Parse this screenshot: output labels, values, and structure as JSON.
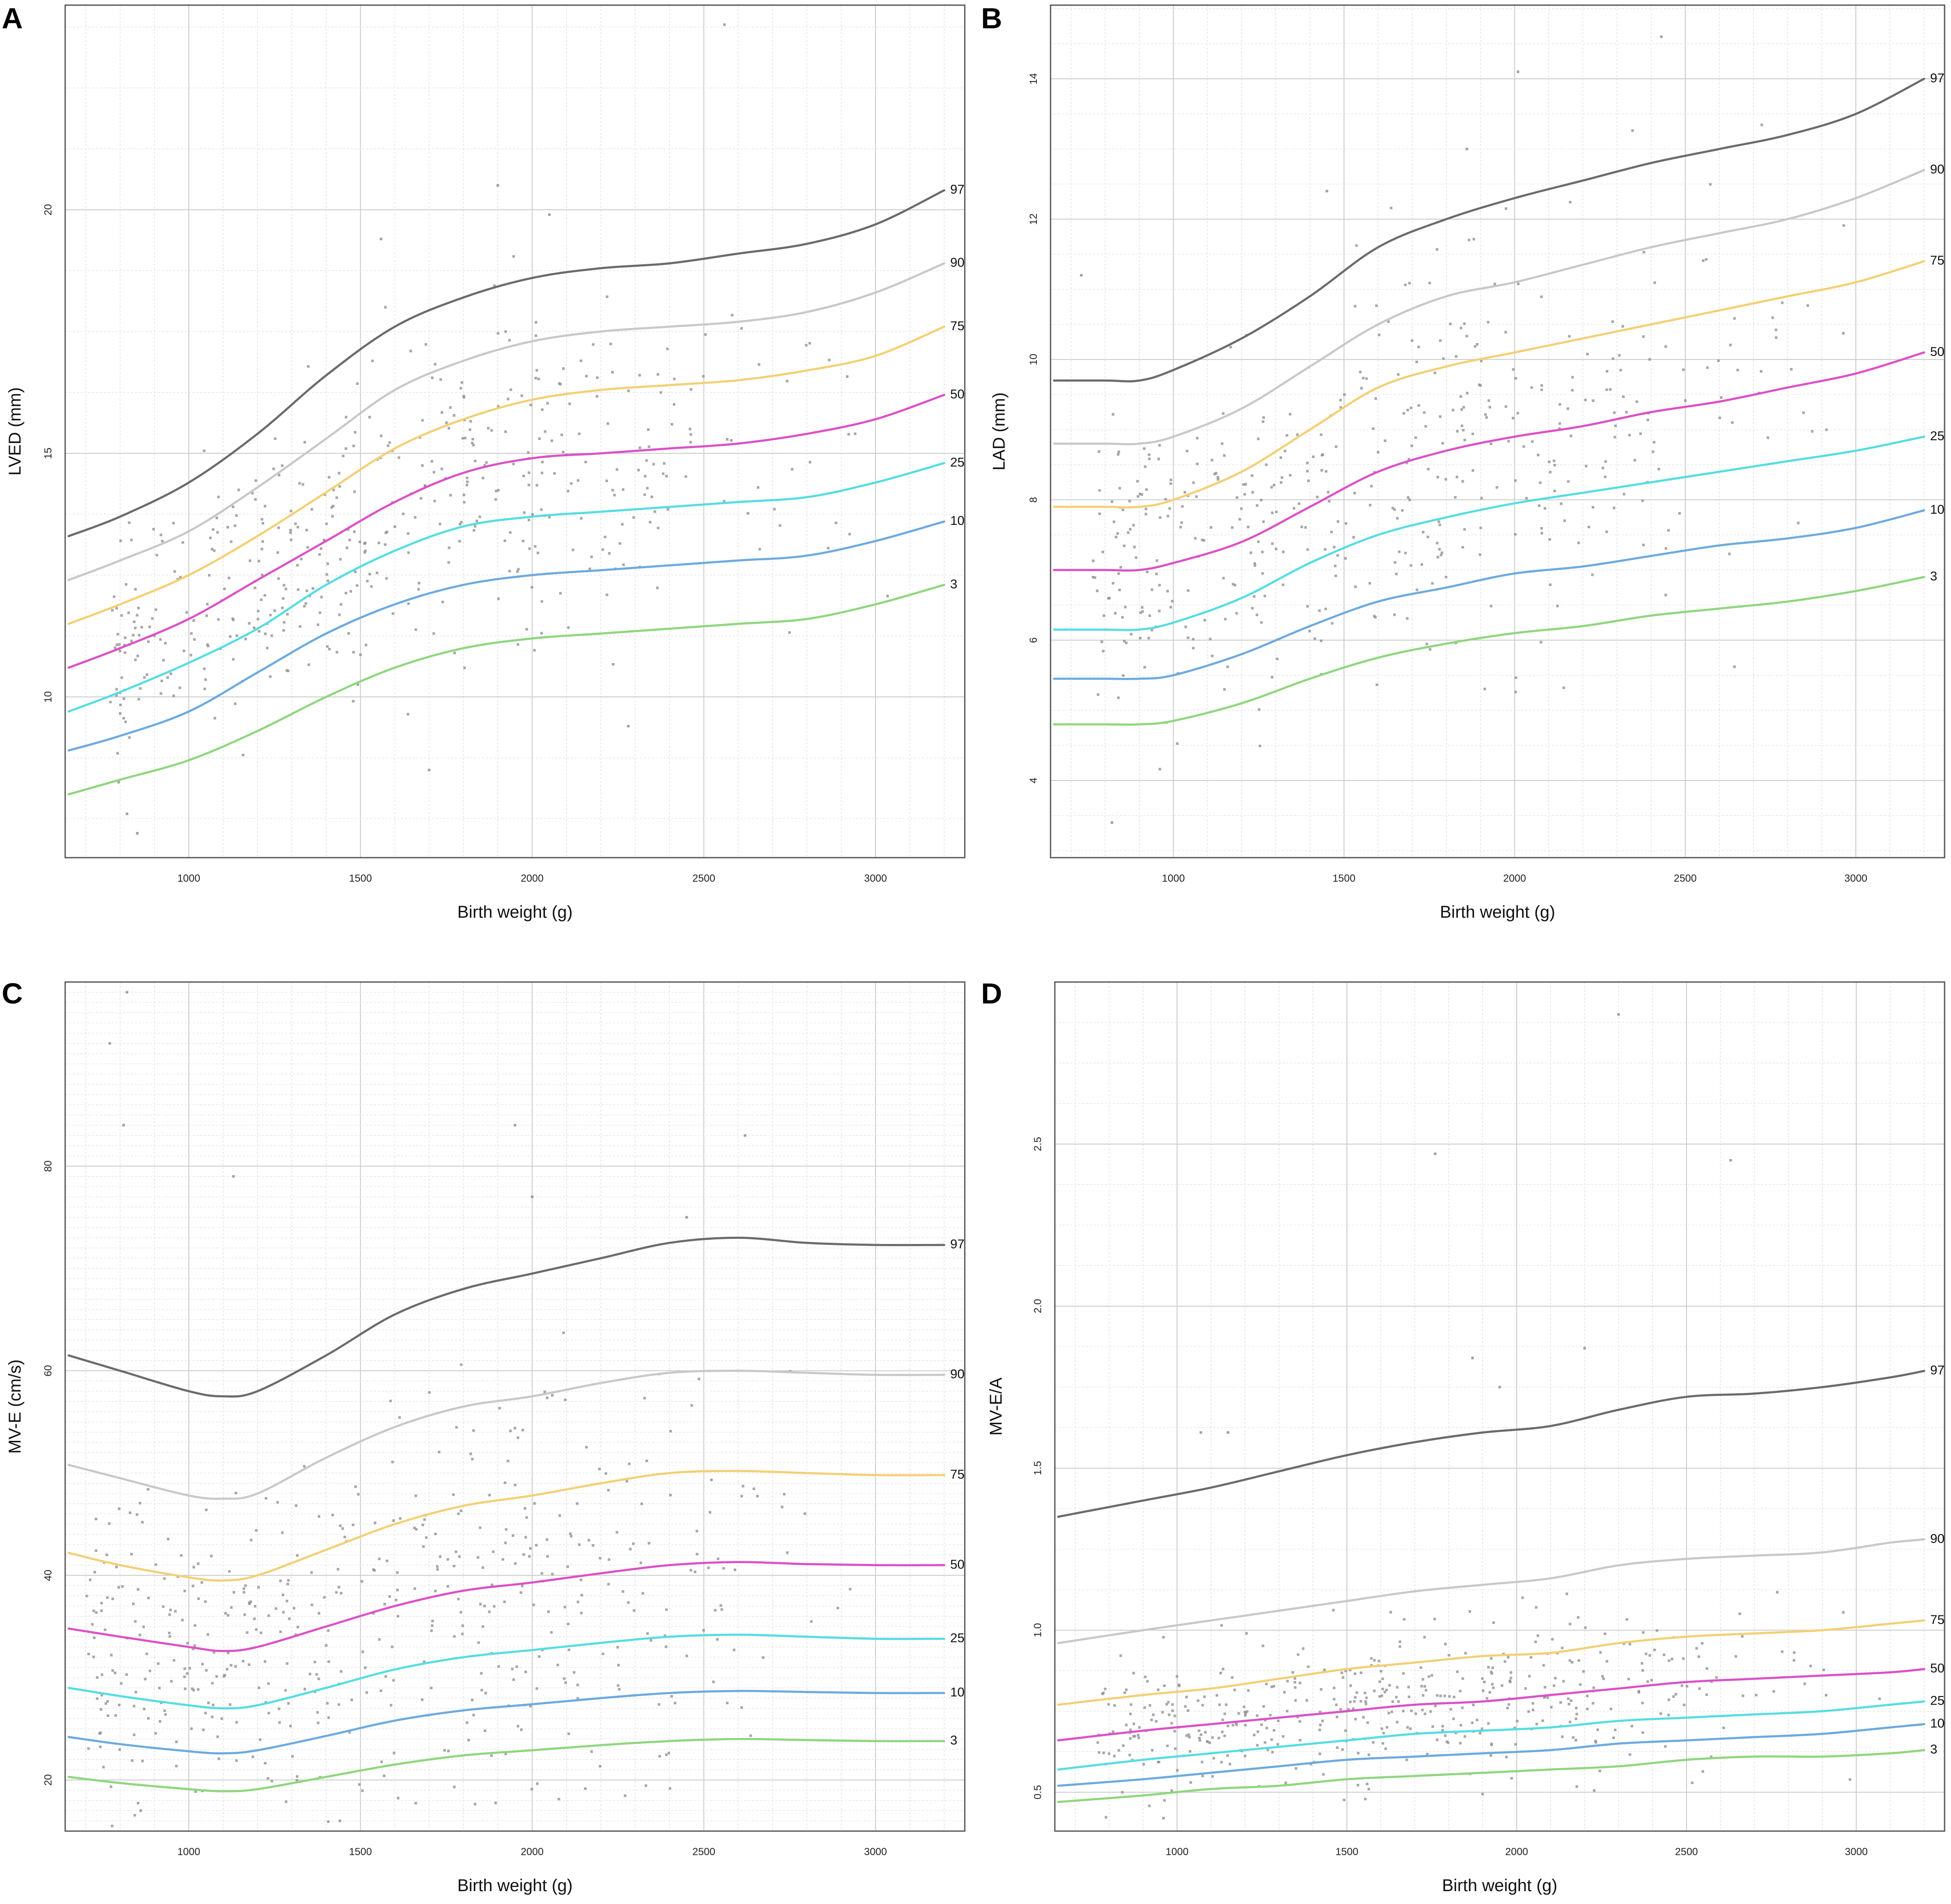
{
  "figure": {
    "panels": [
      "A",
      "B",
      "C",
      "D"
    ]
  },
  "chart_data": [
    {
      "panel": "A",
      "type": "line",
      "title": "",
      "xlabel": "Birth weight (g)",
      "ylabel": "LVED (mm)",
      "xlim": [
        640,
        3260
      ],
      "ylim": [
        6.7,
        24.2
      ],
      "xticks": [
        1000,
        1500,
        2000,
        2500,
        3000
      ],
      "yticks": [
        10,
        15,
        20
      ],
      "grid": "on",
      "x": [
        650,
        800,
        1000,
        1200,
        1400,
        1600,
        1800,
        2000,
        2200,
        2400,
        2600,
        2800,
        3000,
        3200
      ],
      "series": [
        {
          "name": "97",
          "color": "#6b6b6b",
          "values": [
            13.3,
            13.7,
            14.4,
            15.4,
            16.6,
            17.6,
            18.2,
            18.6,
            18.8,
            18.9,
            19.1,
            19.3,
            19.7,
            20.4
          ]
        },
        {
          "name": "90",
          "color": "#c8c8c8",
          "values": [
            12.4,
            12.8,
            13.4,
            14.3,
            15.3,
            16.3,
            16.9,
            17.3,
            17.5,
            17.6,
            17.7,
            17.9,
            18.3,
            18.9
          ]
        },
        {
          "name": "75",
          "color": "#f4cf74",
          "values": [
            11.5,
            11.9,
            12.5,
            13.3,
            14.2,
            15.1,
            15.7,
            16.1,
            16.3,
            16.4,
            16.5,
            16.7,
            17.0,
            17.6
          ]
        },
        {
          "name": "50",
          "color": "#dc50c8",
          "values": [
            10.6,
            11.0,
            11.6,
            12.4,
            13.2,
            14.0,
            14.6,
            14.9,
            15.0,
            15.1,
            15.2,
            15.4,
            15.7,
            16.2
          ]
        },
        {
          "name": "25",
          "color": "#55dde3",
          "values": [
            9.7,
            10.1,
            10.7,
            11.4,
            12.3,
            13.0,
            13.5,
            13.7,
            13.8,
            13.9,
            14.0,
            14.1,
            14.4,
            14.8
          ]
        },
        {
          "name": "10",
          "color": "#6daadf",
          "values": [
            8.9,
            9.2,
            9.7,
            10.5,
            11.3,
            11.9,
            12.3,
            12.5,
            12.6,
            12.7,
            12.8,
            12.9,
            13.2,
            13.6
          ]
        },
        {
          "name": "3",
          "color": "#8fd67e",
          "values": [
            8.0,
            8.3,
            8.7,
            9.3,
            10.0,
            10.6,
            11.0,
            11.2,
            11.3,
            11.4,
            11.5,
            11.6,
            11.9,
            12.3
          ]
        }
      ],
      "scatter": {
        "seed": 11,
        "n": 480,
        "xrange": [
          760,
          3050
        ],
        "center_series": "50",
        "low_series": "3",
        "high_series": "97",
        "spread": 0.55,
        "outliers": [
          [
            2560,
            23.8
          ],
          [
            1900,
            20.5
          ],
          [
            2050,
            19.9
          ],
          [
            1560,
            19.4
          ],
          [
            850,
            7.2
          ],
          [
            820,
            7.6
          ],
          [
            1700,
            8.5
          ],
          [
            2280,
            9.4
          ]
        ]
      }
    },
    {
      "panel": "B",
      "type": "line",
      "title": "",
      "xlabel": "Birth weight (g)",
      "ylabel": "LAD (mm)",
      "xlim": [
        640,
        3260
      ],
      "ylim": [
        2.9,
        15.05
      ],
      "xticks": [
        1000,
        1500,
        2000,
        2500,
        3000
      ],
      "yticks": [
        4,
        6,
        8,
        10,
        12,
        14
      ],
      "grid": "on",
      "x": [
        650,
        800,
        900,
        1000,
        1200,
        1400,
        1600,
        1800,
        2000,
        2200,
        2400,
        2600,
        2800,
        3000,
        3200
      ],
      "series": [
        {
          "name": "97",
          "color": "#6b6b6b",
          "values": [
            9.7,
            9.7,
            9.7,
            9.85,
            10.3,
            10.9,
            11.6,
            12.0,
            12.3,
            12.55,
            12.8,
            13.0,
            13.2,
            13.5,
            14.0
          ]
        },
        {
          "name": "90",
          "color": "#c8c8c8",
          "values": [
            8.8,
            8.8,
            8.8,
            8.9,
            9.3,
            9.9,
            10.5,
            10.9,
            11.1,
            11.35,
            11.6,
            11.8,
            12.0,
            12.3,
            12.7
          ]
        },
        {
          "name": "75",
          "color": "#f4cf74",
          "values": [
            7.9,
            7.9,
            7.9,
            8.0,
            8.4,
            9.0,
            9.6,
            9.9,
            10.1,
            10.3,
            10.5,
            10.7,
            10.9,
            11.1,
            11.4
          ]
        },
        {
          "name": "50",
          "color": "#dc50c8",
          "values": [
            7.0,
            7.0,
            7.0,
            7.1,
            7.4,
            7.9,
            8.4,
            8.7,
            8.9,
            9.05,
            9.25,
            9.4,
            9.6,
            9.8,
            10.1
          ]
        },
        {
          "name": "25",
          "color": "#55dde3",
          "values": [
            6.15,
            6.15,
            6.15,
            6.25,
            6.6,
            7.1,
            7.5,
            7.75,
            7.95,
            8.1,
            8.25,
            8.4,
            8.55,
            8.7,
            8.9
          ]
        },
        {
          "name": "10",
          "color": "#6daadf",
          "values": [
            5.45,
            5.45,
            5.45,
            5.5,
            5.8,
            6.2,
            6.55,
            6.75,
            6.95,
            7.05,
            7.2,
            7.35,
            7.45,
            7.6,
            7.85
          ]
        },
        {
          "name": "3",
          "color": "#8fd67e",
          "values": [
            4.8,
            4.8,
            4.8,
            4.85,
            5.1,
            5.45,
            5.75,
            5.95,
            6.1,
            6.2,
            6.35,
            6.45,
            6.55,
            6.7,
            6.9
          ]
        }
      ],
      "scatter": {
        "seed": 23,
        "n": 460,
        "xrange": [
          760,
          3050
        ],
        "center_series": "50",
        "low_series": "3",
        "high_series": "97",
        "spread": 0.55,
        "outliers": [
          [
            2430,
            14.6
          ],
          [
            2010,
            14.1
          ],
          [
            1860,
            13.0
          ],
          [
            1450,
            12.4
          ],
          [
            820,
            3.4
          ],
          [
            730,
            11.2
          ]
        ]
      }
    },
    {
      "panel": "C",
      "type": "line",
      "title": "",
      "xlabel": "Birth weight (g)",
      "ylabel": "MV-E (cm/s)",
      "xlim": [
        640,
        3260
      ],
      "ylim": [
        15,
        98
      ],
      "xticks": [
        1000,
        1500,
        2000,
        2500,
        3000
      ],
      "yticks": [
        20,
        40,
        60,
        80
      ],
      "grid": "on",
      "x": [
        650,
        800,
        1000,
        1100,
        1200,
        1400,
        1600,
        1800,
        2000,
        2200,
        2400,
        2600,
        2800,
        3000,
        3200
      ],
      "series": [
        {
          "name": "97",
          "color": "#6b6b6b",
          "values": [
            61.5,
            60.0,
            58.0,
            57.5,
            58.0,
            61.5,
            65.5,
            68.0,
            69.5,
            71.0,
            72.5,
            73.0,
            72.5,
            72.3,
            72.3
          ]
        },
        {
          "name": "90",
          "color": "#c8c8c8",
          "values": [
            50.8,
            49.5,
            47.8,
            47.5,
            48.0,
            51.5,
            54.5,
            56.5,
            57.5,
            58.8,
            59.8,
            60.0,
            59.8,
            59.6,
            59.6
          ]
        },
        {
          "name": "75",
          "color": "#f4cf74",
          "values": [
            42.2,
            41.0,
            39.8,
            39.5,
            40.0,
            42.5,
            45.0,
            46.8,
            47.8,
            49.0,
            50.0,
            50.2,
            50.0,
            49.8,
            49.8
          ]
        },
        {
          "name": "50",
          "color": "#dc50c8",
          "values": [
            34.8,
            34.0,
            33.0,
            32.6,
            33.0,
            35.0,
            37.0,
            38.5,
            39.3,
            40.2,
            41.0,
            41.3,
            41.1,
            41.0,
            41.0
          ]
        },
        {
          "name": "25",
          "color": "#55dde3",
          "values": [
            29.0,
            28.2,
            27.3,
            27.0,
            27.3,
            29.0,
            30.8,
            32.0,
            32.7,
            33.4,
            34.0,
            34.2,
            34.0,
            33.8,
            33.8
          ]
        },
        {
          "name": "10",
          "color": "#6daadf",
          "values": [
            24.2,
            23.5,
            22.8,
            22.6,
            22.9,
            24.3,
            25.8,
            26.8,
            27.4,
            28.0,
            28.5,
            28.7,
            28.6,
            28.5,
            28.5
          ]
        },
        {
          "name": "3",
          "color": "#8fd67e",
          "values": [
            20.3,
            19.7,
            19.1,
            18.9,
            19.1,
            20.3,
            21.5,
            22.4,
            22.9,
            23.4,
            23.8,
            24.0,
            23.9,
            23.8,
            23.8
          ]
        }
      ],
      "scatter": {
        "seed": 37,
        "n": 500,
        "xrange": [
          700,
          3100
        ],
        "center_series": "50",
        "low_series": "3",
        "high_series": "97",
        "spread": 0.5,
        "outliers": [
          [
            770,
            92.0
          ],
          [
            820,
            97.0
          ],
          [
            810,
            84.0
          ],
          [
            1130,
            79.0
          ],
          [
            2620,
            83.0
          ],
          [
            2000,
            77.0
          ],
          [
            1950,
            84.0
          ],
          [
            2450,
            75.0
          ],
          [
            860,
            17.0
          ],
          [
            1440,
            16.0
          ]
        ]
      }
    },
    {
      "panel": "D",
      "type": "line",
      "title": "",
      "xlabel": "Birth weight (g)",
      "ylabel": "MV-E/A",
      "xlim": [
        640,
        3260
      ],
      "ylim": [
        0.38,
        3.0
      ],
      "xticks": [
        1000,
        1500,
        2000,
        2500,
        3000
      ],
      "yticks": [
        0.5,
        1.0,
        1.5,
        2.0,
        2.5
      ],
      "grid": "on",
      "x": [
        650,
        900,
        1100,
        1300,
        1500,
        1700,
        1900,
        2100,
        2300,
        2500,
        2700,
        2900,
        3100,
        3200
      ],
      "series": [
        {
          "name": "97",
          "color": "#6b6b6b",
          "values": [
            1.35,
            1.4,
            1.44,
            1.49,
            1.54,
            1.58,
            1.61,
            1.63,
            1.68,
            1.72,
            1.73,
            1.75,
            1.78,
            1.8
          ]
        },
        {
          "name": "90",
          "color": "#c8c8c8",
          "values": [
            0.96,
            1.0,
            1.03,
            1.06,
            1.09,
            1.12,
            1.14,
            1.16,
            1.2,
            1.22,
            1.23,
            1.24,
            1.27,
            1.28
          ]
        },
        {
          "name": "75",
          "color": "#f4cf74",
          "values": [
            0.77,
            0.8,
            0.82,
            0.85,
            0.88,
            0.9,
            0.92,
            0.93,
            0.96,
            0.98,
            0.99,
            1.0,
            1.02,
            1.03
          ]
        },
        {
          "name": "50",
          "color": "#dc50c8",
          "values": [
            0.66,
            0.69,
            0.71,
            0.73,
            0.75,
            0.77,
            0.78,
            0.8,
            0.82,
            0.84,
            0.85,
            0.86,
            0.87,
            0.88
          ]
        },
        {
          "name": "25",
          "color": "#55dde3",
          "values": [
            0.57,
            0.6,
            0.62,
            0.64,
            0.66,
            0.68,
            0.69,
            0.7,
            0.72,
            0.73,
            0.74,
            0.75,
            0.77,
            0.78
          ]
        },
        {
          "name": "10",
          "color": "#6daadf",
          "values": [
            0.52,
            0.54,
            0.56,
            0.58,
            0.6,
            0.61,
            0.62,
            0.63,
            0.65,
            0.66,
            0.67,
            0.68,
            0.7,
            0.71
          ]
        },
        {
          "name": "3",
          "color": "#8fd67e",
          "values": [
            0.47,
            0.49,
            0.51,
            0.52,
            0.54,
            0.55,
            0.56,
            0.57,
            0.58,
            0.6,
            0.61,
            0.61,
            0.62,
            0.63
          ]
        }
      ],
      "scatter": {
        "seed": 53,
        "n": 470,
        "xrange": [
          760,
          3150
        ],
        "center_series": "50",
        "low_series": "3",
        "high_series": "90",
        "spread": 0.5,
        "outliers": [
          [
            2300,
            2.9
          ],
          [
            1760,
            2.47
          ],
          [
            2630,
            2.45
          ],
          [
            2200,
            1.87
          ],
          [
            1870,
            1.84
          ],
          [
            1950,
            1.75
          ],
          [
            1070,
            1.61
          ],
          [
            1150,
            1.61
          ],
          [
            960,
            0.42
          ]
        ]
      }
    }
  ]
}
